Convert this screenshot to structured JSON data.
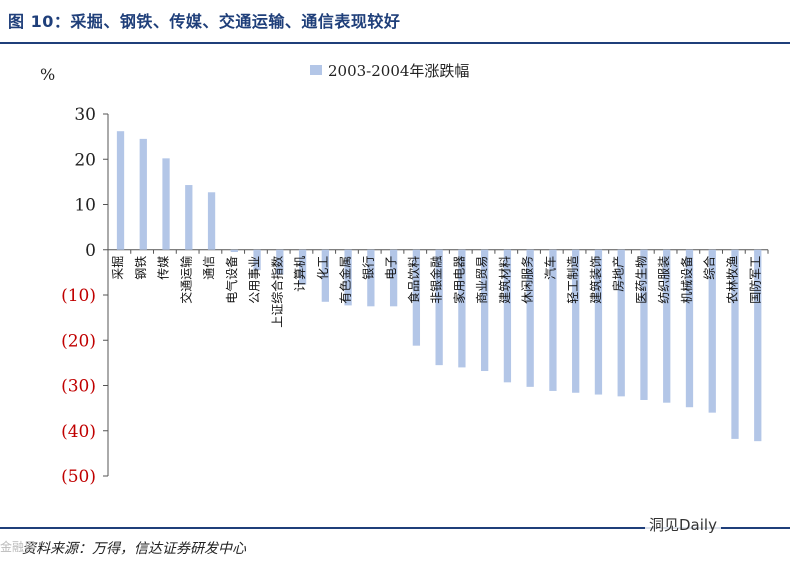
{
  "header": {
    "title": "图 10：采掘、钢铁、传媒、交通运输、通信表现较好"
  },
  "footer": {
    "source": "资料来源：万得，信达证券研发中心",
    "watermark": "洞见Daily",
    "watermark_left": "金融界"
  },
  "colors": {
    "bar": "#b3c6e7",
    "accent": "#1f3f7a",
    "negative_tick": "#c00000"
  },
  "chart_data": {
    "type": "bar",
    "unit_label": "%",
    "legend": "2003-2004年涨跌幅",
    "legend_position": "top",
    "ylim": [
      -50,
      30
    ],
    "yticks": [
      30,
      20,
      10,
      0,
      -10,
      -20,
      -30,
      -40,
      -50
    ],
    "ytick_labels": [
      "30",
      "20",
      "10",
      "0",
      "(10)",
      "(20)",
      "(30)",
      "(40)",
      "(50)"
    ],
    "grid": false,
    "categories": [
      "采掘",
      "钢铁",
      "传媒",
      "交通运输",
      "通信",
      "电气设备",
      "公用事业",
      "上证综合指数",
      "计算机",
      "化工",
      "有色金属",
      "银行",
      "电子",
      "食品饮料",
      "非银金融",
      "家用电器",
      "商业贸易",
      "建筑材料",
      "休闲服务",
      "汽车",
      "轻工制造",
      "建筑装饰",
      "房地产",
      "医药生物",
      "纺织服装",
      "机械设备",
      "综合",
      "农林牧渔",
      "国防军工"
    ],
    "values": [
      26.2,
      24.5,
      20.2,
      14.3,
      12.7,
      -0.5,
      -4.5,
      -5.5,
      -7.7,
      -11.5,
      -12.3,
      -12.5,
      -12.5,
      -21.2,
      -25.5,
      -26.0,
      -26.8,
      -29.3,
      -30.3,
      -31.2,
      -31.6,
      -32.0,
      -32.4,
      -33.2,
      -33.8,
      -34.8,
      -36.0,
      -41.8,
      -42.3
    ]
  }
}
